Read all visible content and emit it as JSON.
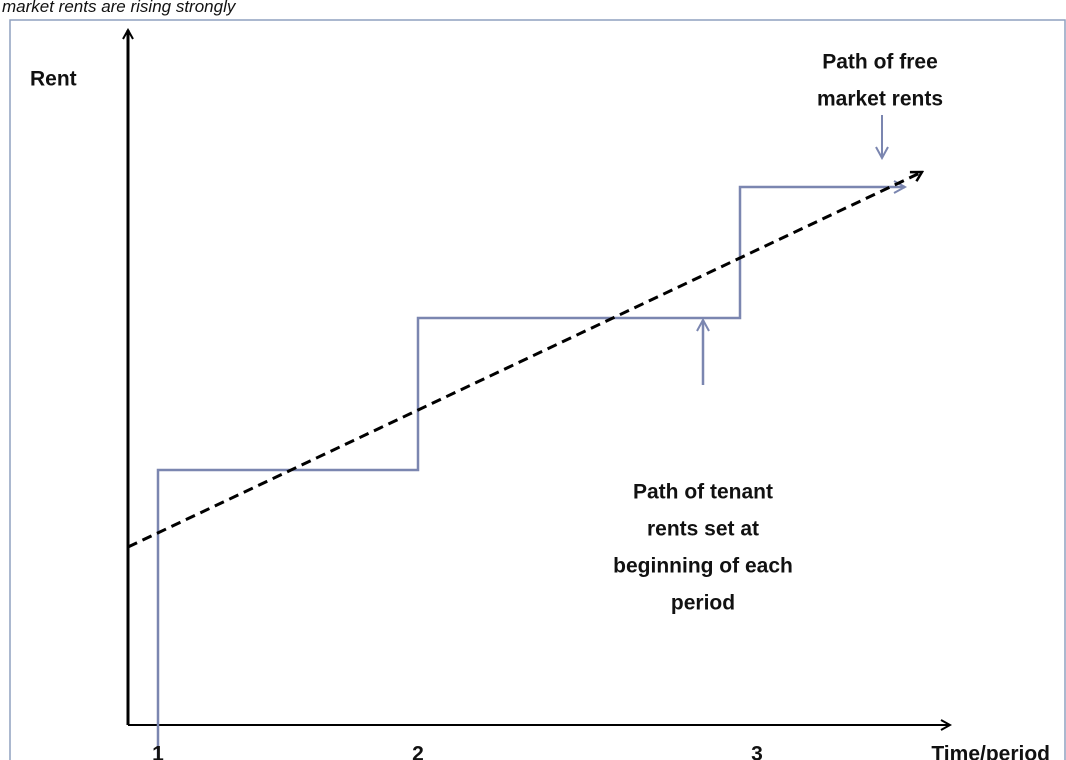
{
  "caption": "market rents are rising strongly",
  "y_axis_label": "Rent",
  "x_axis_label": "Time/period",
  "x_ticks": [
    "1",
    "2",
    "3"
  ],
  "annotations": {
    "free_market": [
      "Path of free",
      "market rents"
    ],
    "tenant": [
      "Path of tenant",
      "rents set at",
      "beginning of each",
      "period"
    ]
  }
}
